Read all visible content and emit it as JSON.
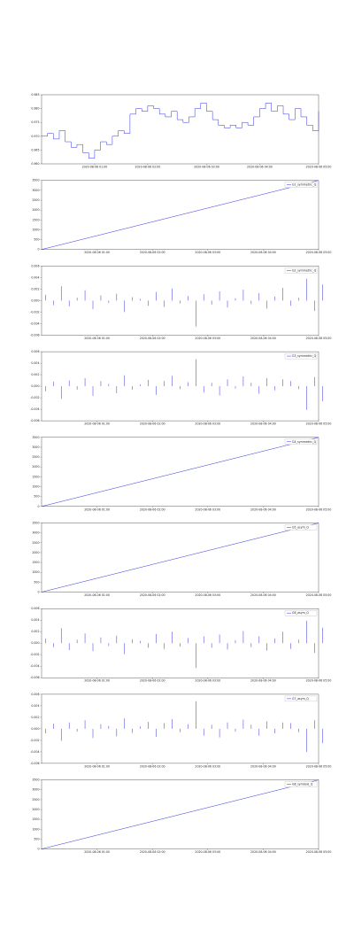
{
  "chart_data": [
    {
      "type": "line",
      "drawstyle": "steps",
      "color": "#3333dd",
      "values": [
        0.97,
        0.971,
        0.969,
        0.972,
        0.968,
        0.966,
        0.967,
        0.964,
        0.962,
        0.965,
        0.968,
        0.967,
        0.97,
        0.972,
        0.971,
        0.978,
        0.98,
        0.979,
        0.981,
        0.98,
        0.978,
        0.977,
        0.979,
        0.976,
        0.975,
        0.977,
        0.98,
        0.982,
        0.979,
        0.976,
        0.974,
        0.973,
        0.974,
        0.973,
        0.975,
        0.974,
        0.977,
        0.98,
        0.982,
        0.979,
        0.981,
        0.978,
        0.976,
        0.98,
        0.977,
        0.974,
        0.972,
        0.979
      ],
      "xlim": [
        0,
        47
      ],
      "xticks": [
        {
          "value": 9,
          "label": "2020-08-06 01:00"
        },
        {
          "value": 18,
          "label": "2020-08-06 02:00"
        },
        {
          "value": 28,
          "label": "2020-08-06 03:00"
        },
        {
          "value": 37,
          "label": "2020-08-06 04:00"
        },
        {
          "value": 47,
          "label": "2020-08-06 05:00"
        }
      ],
      "ylim": [
        0.96,
        0.985
      ],
      "yticks": [
        {
          "value": 0.96,
          "label": "0.960"
        },
        0.965,
        {
          "value": 0.97,
          "label": "0.970"
        },
        0.975,
        {
          "value": 0.98,
          "label": "0.980"
        },
        0.985
      ]
    },
    {
      "type": "line",
      "color": "#3333dd",
      "series_name": "G1_symmetric_Q",
      "values": [
        0,
        700,
        1400,
        2100,
        2800,
        3500
      ],
      "xlim": [
        0,
        5
      ],
      "xticks": [
        {
          "value": 1,
          "label": "2020-08-06 01:00"
        },
        {
          "value": 2,
          "label": "2020-08-06 02:00"
        },
        {
          "value": 3,
          "label": "2020-08-06 03:00"
        },
        {
          "value": 4,
          "label": "2020-08-06 04:00"
        },
        {
          "value": 5,
          "label": "2020-08-06 05:00"
        }
      ],
      "ylim": [
        0,
        3500
      ],
      "yticks": [
        0,
        500,
        1000,
        1500,
        2000,
        2500,
        3000,
        3500
      ]
    },
    {
      "type": "stem",
      "color": "#3333dd",
      "series_name": "G2_symmetric_Q",
      "values": [
        0.001,
        -0.0008,
        0.0025,
        -0.001,
        0.0005,
        0.0018,
        -0.0015,
        0.0009,
        -0.0004,
        0.0012,
        -0.002,
        0.0006,
        0.0003,
        -0.0009,
        0.0015,
        -0.0011,
        0.0021,
        -0.0005,
        0.0008,
        -0.0045,
        0.0011,
        -0.0007,
        0.0016,
        -0.0012,
        0.0004,
        0.0019,
        -0.0006,
        0.0013,
        -0.0014,
        0.0007,
        0.0022,
        -0.0009,
        0.0005,
        0.0038,
        -0.0018,
        0.0028
      ],
      "xlim": [
        0,
        35
      ],
      "xticks": [
        {
          "value": 7,
          "label": "2020-08-06 01:00"
        },
        {
          "value": 14,
          "label": "2020-08-06 02:00"
        },
        {
          "value": 21,
          "label": "2020-08-06 03:00"
        },
        {
          "value": 28,
          "label": "2020-08-06 04:00"
        },
        {
          "value": 35,
          "label": "2020-08-06 05:00"
        }
      ],
      "ylim": [
        -0.006,
        0.006
      ],
      "yticks": [
        -0.006,
        -0.004,
        -0.002,
        {
          "value": 0,
          "label": "0.000"
        },
        0.002,
        0.004,
        0.006
      ]
    },
    {
      "type": "stem",
      "color": "#3333dd",
      "series_name": "G3_symmetric_Q",
      "values": [
        -0.0009,
        0.0008,
        -0.0022,
        0.001,
        -0.0006,
        0.0014,
        -0.0017,
        0.0009,
        0.0004,
        -0.0012,
        0.0019,
        -0.0006,
        0.0003,
        0.0011,
        -0.0015,
        0.0009,
        0.0018,
        -0.0005,
        0.0007,
        0.0047,
        -0.0011,
        0.0006,
        -0.0016,
        0.0012,
        -0.0004,
        0.0017,
        0.0006,
        -0.0013,
        0.0014,
        -0.0007,
        0.0012,
        0.0009,
        -0.0005,
        -0.0041,
        0.0016,
        -0.0026
      ],
      "xlim": [
        0,
        35
      ],
      "xticks": [
        {
          "value": 7,
          "label": "2020-08-06 01:00"
        },
        {
          "value": 14,
          "label": "2020-08-06 02:00"
        },
        {
          "value": 21,
          "label": "2020-08-06 03:00"
        },
        {
          "value": 28,
          "label": "2020-08-06 04:00"
        },
        {
          "value": 35,
          "label": "2020-08-06 05:00"
        }
      ],
      "ylim": [
        -0.006,
        0.006
      ],
      "yticks": [
        -0.006,
        -0.004,
        -0.002,
        {
          "value": 0,
          "label": "0.000"
        },
        0.002,
        0.004,
        0.006
      ]
    },
    {
      "type": "line",
      "color": "#3333dd",
      "series_name": "G4_symmetric_Q",
      "values": [
        0,
        700,
        1400,
        2100,
        2800,
        3500
      ],
      "xlim": [
        0,
        5
      ],
      "xticks": [
        {
          "value": 1,
          "label": "2020-08-06 01:00"
        },
        {
          "value": 2,
          "label": "2020-08-06 02:00"
        },
        {
          "value": 3,
          "label": "2020-08-06 03:00"
        },
        {
          "value": 4,
          "label": "2020-08-06 04:00"
        },
        {
          "value": 5,
          "label": "2020-08-06 05:00"
        }
      ],
      "ylim": [
        0,
        3500
      ],
      "yticks": [
        0,
        500,
        1000,
        1500,
        2000,
        2500,
        3000,
        3500
      ]
    },
    {
      "type": "line",
      "color": "#3333dd",
      "series_name": "G5_asym_Q",
      "values": [
        0,
        700,
        1400,
        2100,
        2800,
        3500
      ],
      "xlim": [
        0,
        5
      ],
      "xticks": [
        {
          "value": 1,
          "label": "2020-08-06 01:00"
        },
        {
          "value": 2,
          "label": "2020-08-06 02:00"
        },
        {
          "value": 3,
          "label": "2020-08-06 03:00"
        },
        {
          "value": 4,
          "label": "2020-08-06 04:00"
        },
        {
          "value": 5,
          "label": "2020-08-06 05:00"
        }
      ],
      "ylim": [
        0,
        3500
      ],
      "yticks": [
        0,
        500,
        1000,
        1500,
        2000,
        2500,
        3000,
        3500
      ]
    },
    {
      "type": "stem",
      "color": "#3333dd",
      "series_name": "G6_asym_Q",
      "values": [
        0.0008,
        -0.0007,
        0.0026,
        -0.0012,
        0.0006,
        0.0017,
        -0.0014,
        0.001,
        -0.0005,
        0.0013,
        -0.0019,
        0.0007,
        0.0004,
        -0.0008,
        0.0016,
        -0.001,
        0.002,
        -0.0006,
        0.0009,
        -0.0043,
        0.0012,
        -0.0008,
        0.0015,
        -0.0011,
        0.0005,
        0.0021,
        -0.0007,
        0.0012,
        -0.0013,
        0.0008,
        0.002,
        -0.001,
        0.0006,
        0.0039,
        -0.0017,
        0.0027
      ],
      "xlim": [
        0,
        35
      ],
      "xticks": [
        {
          "value": 7,
          "label": "2020-08-06 01:00"
        },
        {
          "value": 14,
          "label": "2020-08-06 02:00"
        },
        {
          "value": 21,
          "label": "2020-08-06 03:00"
        },
        {
          "value": 28,
          "label": "2020-08-06 04:00"
        },
        {
          "value": 35,
          "label": "2020-08-06 05:00"
        }
      ],
      "ylim": [
        -0.006,
        0.006
      ],
      "yticks": [
        -0.006,
        -0.004,
        -0.002,
        {
          "value": 0,
          "label": "0.000"
        },
        0.002,
        0.004,
        0.006
      ]
    },
    {
      "type": "stem",
      "color": "#3333dd",
      "series_name": "G7_asym_Q",
      "values": [
        -0.0008,
        0.0009,
        -0.0021,
        0.0011,
        -0.0005,
        0.0015,
        -0.0016,
        0.0008,
        0.0005,
        -0.0013,
        0.0018,
        -0.0007,
        0.0004,
        0.0012,
        -0.0014,
        0.001,
        0.0017,
        -0.0006,
        0.0008,
        0.0048,
        -0.0012,
        0.0007,
        -0.0015,
        0.0011,
        -0.0005,
        0.0016,
        0.0007,
        -0.0012,
        0.0013,
        -0.0008,
        0.0011,
        0.001,
        -0.0006,
        -0.004,
        0.0015,
        -0.0025
      ],
      "xlim": [
        0,
        35
      ],
      "xticks": [
        {
          "value": 7,
          "label": "2020-08-06 01:00"
        },
        {
          "value": 14,
          "label": "2020-08-06 02:00"
        },
        {
          "value": 21,
          "label": "2020-08-06 03:00"
        },
        {
          "value": 28,
          "label": "2020-08-06 04:00"
        },
        {
          "value": 35,
          "label": "2020-08-06 05:00"
        }
      ],
      "ylim": [
        -0.006,
        0.006
      ],
      "yticks": [
        -0.006,
        -0.004,
        -0.002,
        {
          "value": 0,
          "label": "0.000"
        },
        0.002,
        0.004,
        0.006
      ]
    },
    {
      "type": "line",
      "color": "#3333dd",
      "series_name": "G8_symbols_Q",
      "values": [
        0,
        700,
        1400,
        2100,
        2800,
        3500
      ],
      "xlim": [
        0,
        5
      ],
      "xticks": [
        {
          "value": 1,
          "label": "2020-08-06 01:00"
        },
        {
          "value": 2,
          "label": "2020-08-06 02:00"
        },
        {
          "value": 3,
          "label": "2020-08-06 03:00"
        },
        {
          "value": 4,
          "label": "2020-08-06 04:00"
        },
        {
          "value": 5,
          "label": "2020-08-06 05:00"
        }
      ],
      "ylim": [
        0,
        3500
      ],
      "yticks": [
        0,
        500,
        1000,
        1500,
        2000,
        2500,
        3000,
        3500
      ]
    }
  ]
}
